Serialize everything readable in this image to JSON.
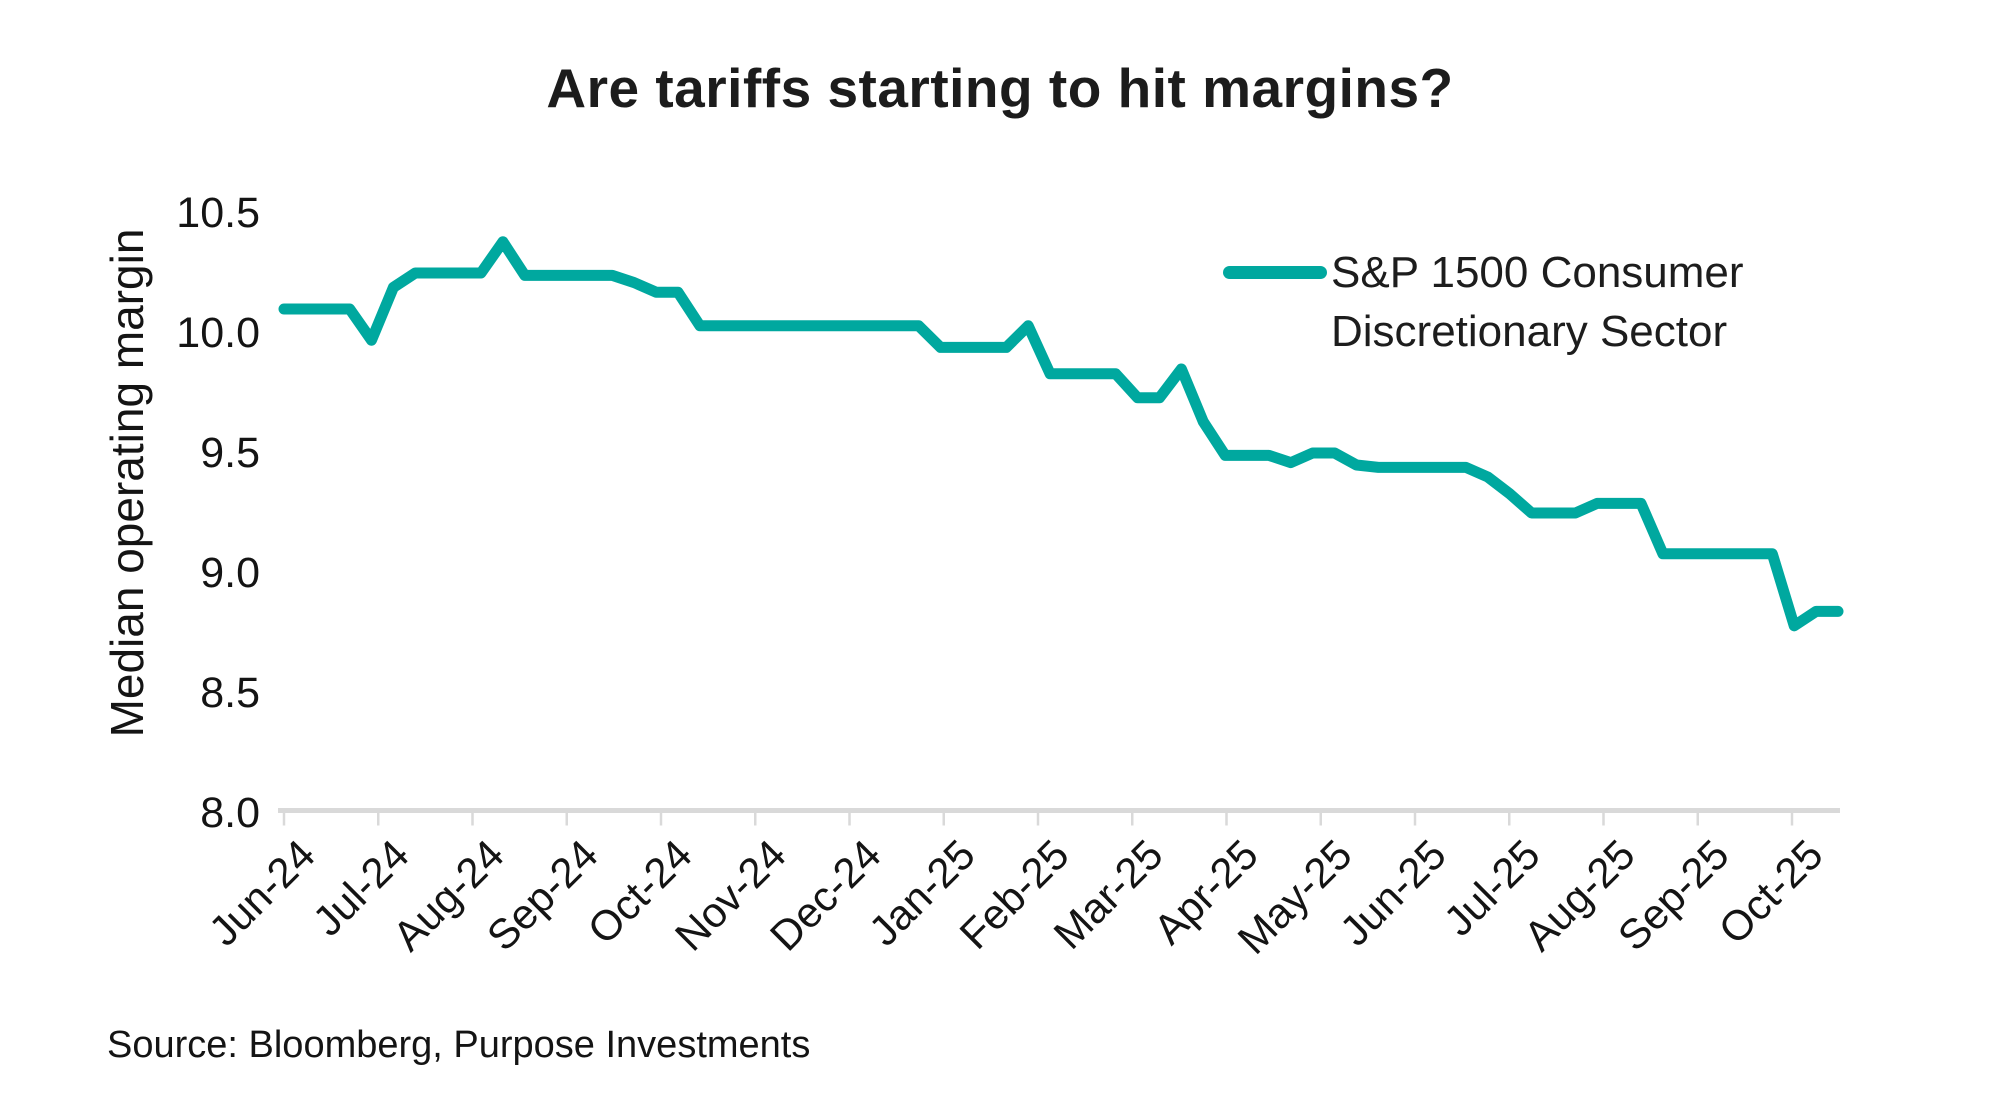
{
  "page": {
    "background": "#ffffff"
  },
  "chart_data": {
    "type": "line",
    "title": "Are tariffs starting to hit margins?",
    "ylabel": "Median operating margin",
    "xlabel": "",
    "ylim": [
      8.0,
      10.5
    ],
    "y_ticks": [
      10.5,
      10.0,
      9.5,
      9.0,
      8.5,
      8.0
    ],
    "x_tick_labels": [
      "Jun-24",
      "Jul-24",
      "Aug-24",
      "Sep-24",
      "Oct-24",
      "Nov-24",
      "Dec-24",
      "Jan-25",
      "Feb-25",
      "Mar-25",
      "Apr-25",
      "May-25",
      "Jun-25",
      "Jul-25",
      "Aug-25",
      "Sep-25",
      "Oct-25"
    ],
    "x_resolution": "weekly points spanning Jun-24 through mid-Oct-25",
    "grid": false,
    "legend_position": "upper-right-inside",
    "line_color": "#00A89F",
    "axis_color": "#D9D9D9",
    "text_color": "#141414",
    "series": [
      {
        "name": "S&P 1500 Consumer Discretionary Sector",
        "values": [
          10.1,
          10.1,
          10.1,
          10.1,
          9.97,
          10.19,
          10.25,
          10.25,
          10.25,
          10.25,
          10.38,
          10.24,
          10.24,
          10.24,
          10.24,
          10.24,
          10.21,
          10.17,
          10.17,
          10.03,
          10.03,
          10.03,
          10.03,
          10.03,
          10.03,
          10.03,
          10.03,
          10.03,
          10.03,
          10.03,
          9.94,
          9.94,
          9.94,
          9.94,
          10.03,
          9.83,
          9.83,
          9.83,
          9.83,
          9.73,
          9.73,
          9.85,
          9.63,
          9.49,
          9.49,
          9.49,
          9.46,
          9.5,
          9.5,
          9.45,
          9.44,
          9.44,
          9.44,
          9.44,
          9.44,
          9.4,
          9.33,
          9.25,
          9.25,
          9.25,
          9.29,
          9.29,
          9.29,
          9.08,
          9.08,
          9.08,
          9.08,
          9.08,
          9.08,
          8.78,
          8.84,
          8.84
        ]
      }
    ]
  },
  "source_note": "Source: Bloomberg, Purpose Investments"
}
